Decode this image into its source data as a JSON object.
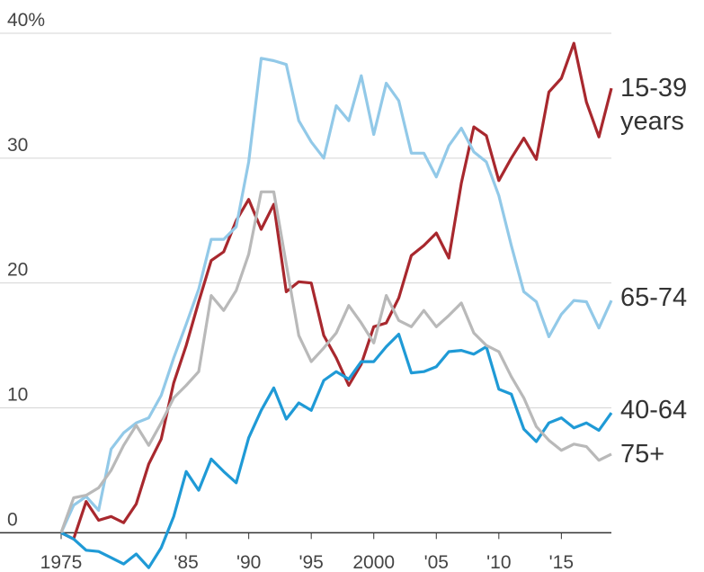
{
  "chart_data": {
    "type": "line",
    "x": [
      1975,
      1976,
      1977,
      1978,
      1979,
      1980,
      1981,
      1982,
      1983,
      1984,
      1985,
      1986,
      1987,
      1988,
      1989,
      1990,
      1991,
      1992,
      1993,
      1994,
      1995,
      1996,
      1997,
      1998,
      1999,
      2000,
      2001,
      2002,
      2003,
      2004,
      2005,
      2006,
      2007,
      2008,
      2009,
      2010,
      2011,
      2012,
      2013,
      2014,
      2015,
      2016,
      2017,
      2018,
      2019
    ],
    "xlim": [
      1975,
      2019
    ],
    "xticks": [
      {
        "value": 1975,
        "label": "1975"
      },
      {
        "value": 1985,
        "label": "'85"
      },
      {
        "value": 1990,
        "label": "'90"
      },
      {
        "value": 1995,
        "label": "'95"
      },
      2000,
      {
        "value": 2005,
        "label": "'05"
      },
      {
        "value": 2010,
        "label": "'10"
      },
      {
        "value": 2015,
        "label": "'15"
      }
    ],
    "ylim": [
      -3,
      40
    ],
    "yticks": [
      0,
      10,
      20,
      30,
      {
        "value": 40,
        "label": "40%"
      }
    ],
    "grid": true,
    "series": [
      {
        "name": "15-39 years",
        "color": "#a8282e",
        "values": [
          0,
          -0.5,
          2.5,
          1,
          1.3,
          0.8,
          2.3,
          5.5,
          7.5,
          12,
          15,
          18.5,
          21.8,
          22.5,
          25,
          26.7,
          24.3,
          26.3,
          19.3,
          20.1,
          20,
          15.8,
          14,
          11.8,
          13.5,
          16.5,
          16.8,
          18.8,
          22.2,
          23,
          24,
          22,
          28,
          32.5,
          31.8,
          28.2,
          30,
          31.6,
          29.9,
          35.3,
          36.4,
          39.2,
          34.5,
          31.7,
          35.6
        ]
      },
      {
        "name": "65-74",
        "color": "#92c9e8",
        "values": [
          0,
          2.2,
          2.9,
          1.8,
          6.7,
          8,
          8.8,
          9.2,
          11,
          14,
          16.7,
          19.5,
          23.5,
          23.5,
          24.5,
          29.7,
          38,
          37.8,
          37.5,
          33,
          31.3,
          30,
          34.2,
          33,
          36.6,
          31.9,
          36,
          34.6,
          30.4,
          30.4,
          28.5,
          31,
          32.4,
          30.5,
          29.7,
          27,
          23,
          19.3,
          18.5,
          15.7,
          17.5,
          18.6,
          18.5,
          16.4,
          18.6
        ]
      },
      {
        "name": "40-64",
        "color": "#1f9ad6",
        "values": [
          0,
          -0.5,
          -1.4,
          -1.5,
          -2,
          -2.5,
          -1.7,
          -2.8,
          -1.2,
          1.3,
          4.9,
          3.4,
          5.9,
          4.9,
          4,
          7.6,
          9.8,
          11.6,
          9.1,
          10.4,
          9.8,
          12.2,
          12.9,
          12.3,
          13.7,
          13.7,
          14.9,
          15.9,
          12.8,
          12.9,
          13.3,
          14.5,
          14.6,
          14.3,
          14.9,
          11.5,
          11.1,
          8.3,
          7.3,
          8.8,
          9.2,
          8.4,
          8.8,
          8.2,
          9.6
        ]
      },
      {
        "name": "75+",
        "color": "#b9b9b9",
        "values": [
          0,
          2.8,
          3,
          3.6,
          5,
          7,
          8.6,
          7,
          8.8,
          10.8,
          11.8,
          12.9,
          19,
          17.8,
          19.4,
          22.3,
          27.3,
          27.3,
          21.5,
          15.8,
          13.7,
          14.8,
          16,
          18.2,
          16.8,
          15.2,
          19,
          17,
          16.5,
          17.8,
          16.5,
          17.4,
          18.4,
          16,
          15,
          14.5,
          12.5,
          10.8,
          8.5,
          7.4,
          6.6,
          7.1,
          6.9,
          5.8,
          6.3
        ]
      }
    ]
  }
}
